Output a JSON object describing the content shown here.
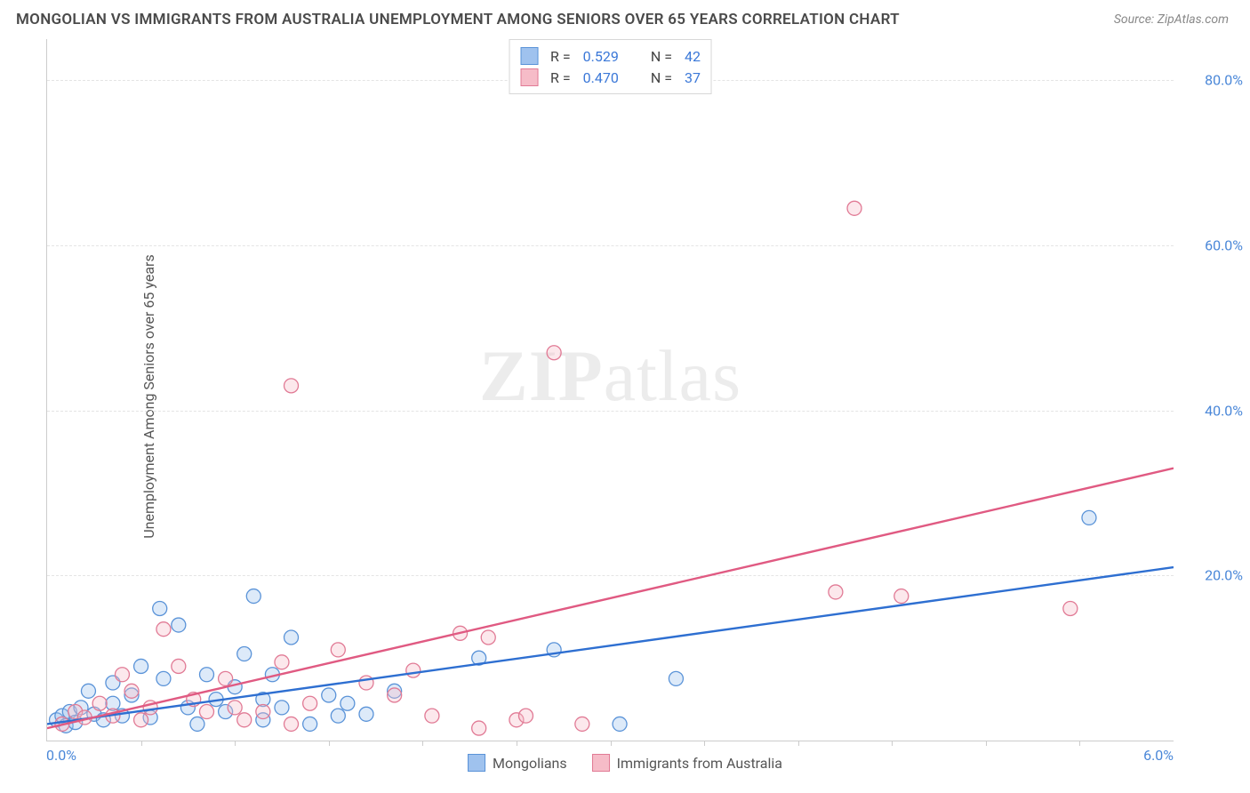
{
  "title": "MONGOLIAN VS IMMIGRANTS FROM AUSTRALIA UNEMPLOYMENT AMONG SENIORS OVER 65 YEARS CORRELATION CHART",
  "source": "Source: ZipAtlas.com",
  "watermark": "ZIPatlas",
  "y_axis_title": "Unemployment Among Seniors over 65 years",
  "chart": {
    "type": "scatter",
    "xlim": [
      0.0,
      6.0
    ],
    "ylim": [
      0.0,
      85.0
    ],
    "x_tick_min_label": "0.0%",
    "x_tick_max_label": "6.0%",
    "y_ticks": [
      20.0,
      40.0,
      60.0,
      80.0
    ],
    "y_tick_labels": [
      "20.0%",
      "40.0%",
      "60.0%",
      "80.0%"
    ],
    "x_minor_ticks": [
      0.5,
      1.0,
      1.5,
      2.0,
      2.5,
      3.0,
      3.5,
      4.0,
      4.5,
      5.0,
      5.5
    ],
    "background_color": "#ffffff",
    "grid_color": "#e4e4e4",
    "axis_color": "#cccccc",
    "tick_label_color": "#4a87d8",
    "marker_radius": 8,
    "marker_fill_opacity": 0.35,
    "marker_stroke_width": 1.3,
    "line_width": 2.4,
    "series": [
      {
        "name": "Mongolians",
        "legend_label": "Mongolians",
        "stats": {
          "R_label": "R =",
          "R": "0.529",
          "N_label": "N =",
          "N": "42"
        },
        "color_fill": "#9fc2ee",
        "color_stroke": "#5a93d8",
        "line_color": "#2e6fd1",
        "regression": {
          "x1": 0.0,
          "y1": 2.0,
          "x2": 6.0,
          "y2": 21.0
        },
        "points": [
          [
            0.05,
            2.5
          ],
          [
            0.08,
            3.0
          ],
          [
            0.1,
            1.8
          ],
          [
            0.12,
            3.5
          ],
          [
            0.15,
            2.2
          ],
          [
            0.18,
            4.0
          ],
          [
            0.22,
            6.0
          ],
          [
            0.25,
            3.2
          ],
          [
            0.3,
            2.5
          ],
          [
            0.35,
            7.0
          ],
          [
            0.35,
            4.5
          ],
          [
            0.4,
            3.0
          ],
          [
            0.45,
            5.5
          ],
          [
            0.5,
            9.0
          ],
          [
            0.55,
            2.8
          ],
          [
            0.6,
            16.0
          ],
          [
            0.7,
            14.0
          ],
          [
            0.75,
            4.0
          ],
          [
            0.8,
            2.0
          ],
          [
            0.85,
            8.0
          ],
          [
            0.9,
            5.0
          ],
          [
            0.95,
            3.5
          ],
          [
            1.0,
            6.5
          ],
          [
            1.05,
            10.5
          ],
          [
            1.1,
            17.5
          ],
          [
            1.15,
            2.5
          ],
          [
            1.15,
            5.0
          ],
          [
            1.2,
            8.0
          ],
          [
            1.25,
            4.0
          ],
          [
            1.3,
            12.5
          ],
          [
            1.4,
            2.0
          ],
          [
            1.5,
            5.5
          ],
          [
            1.55,
            3.0
          ],
          [
            1.6,
            4.5
          ],
          [
            1.7,
            3.2
          ],
          [
            1.85,
            6.0
          ],
          [
            2.3,
            10.0
          ],
          [
            2.7,
            11.0
          ],
          [
            3.05,
            2.0
          ],
          [
            3.35,
            7.5
          ],
          [
            5.55,
            27.0
          ],
          [
            0.62,
            7.5
          ]
        ]
      },
      {
        "name": "Immigrants from Australia",
        "legend_label": "Immigrants from Australia",
        "stats": {
          "R_label": "R =",
          "R": "0.470",
          "N_label": "N =",
          "N": "37"
        },
        "color_fill": "#f6bcc8",
        "color_stroke": "#e17a95",
        "line_color": "#e05a82",
        "regression": {
          "x1": 0.0,
          "y1": 1.5,
          "x2": 6.0,
          "y2": 33.0
        },
        "points": [
          [
            0.08,
            2.0
          ],
          [
            0.15,
            3.5
          ],
          [
            0.2,
            2.8
          ],
          [
            0.28,
            4.5
          ],
          [
            0.35,
            3.0
          ],
          [
            0.45,
            6.0
          ],
          [
            0.55,
            4.0
          ],
          [
            0.62,
            13.5
          ],
          [
            0.7,
            9.0
          ],
          [
            0.78,
            5.0
          ],
          [
            0.85,
            3.5
          ],
          [
            0.95,
            7.5
          ],
          [
            1.05,
            2.5
          ],
          [
            1.15,
            3.5
          ],
          [
            1.25,
            9.5
          ],
          [
            1.3,
            2.0
          ],
          [
            1.3,
            43.0
          ],
          [
            1.4,
            4.5
          ],
          [
            1.55,
            11.0
          ],
          [
            1.7,
            7.0
          ],
          [
            1.85,
            5.5
          ],
          [
            1.95,
            8.5
          ],
          [
            2.05,
            3.0
          ],
          [
            2.2,
            13.0
          ],
          [
            2.3,
            1.5
          ],
          [
            2.35,
            12.5
          ],
          [
            2.5,
            2.5
          ],
          [
            2.55,
            3.0
          ],
          [
            2.7,
            47.0
          ],
          [
            2.85,
            2.0
          ],
          [
            4.2,
            18.0
          ],
          [
            4.3,
            64.5
          ],
          [
            4.55,
            17.5
          ],
          [
            5.45,
            16.0
          ],
          [
            0.5,
            2.5
          ],
          [
            1.0,
            4.0
          ],
          [
            0.4,
            8.0
          ]
        ]
      }
    ]
  },
  "title_fontsize": 17,
  "label_fontsize": 16
}
